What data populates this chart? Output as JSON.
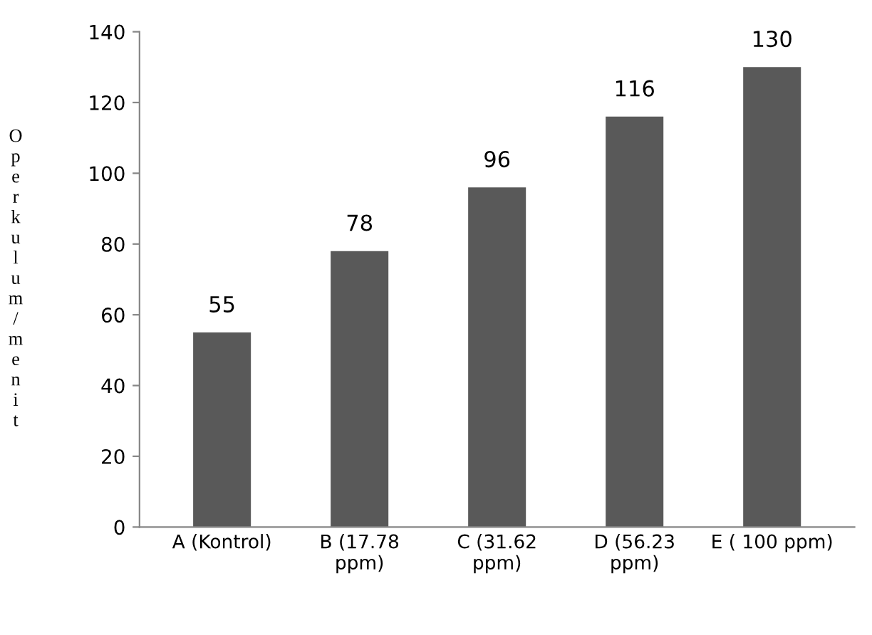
{
  "chart_data": {
    "type": "bar",
    "ylabel": "Operkulum/menit",
    "categories": [
      "A (Kontrol)",
      "B (17.78 ppm)",
      "C (31.62 ppm)",
      "D (56.23 ppm)",
      "E ( 100 ppm)"
    ],
    "values": [
      55,
      78,
      96,
      116,
      130
    ],
    "color": "#595959",
    "ylim": [
      0,
      140
    ],
    "yticks": [
      0,
      20,
      40,
      60,
      80,
      100,
      120,
      140
    ],
    "grid": false,
    "data_labels": true
  }
}
